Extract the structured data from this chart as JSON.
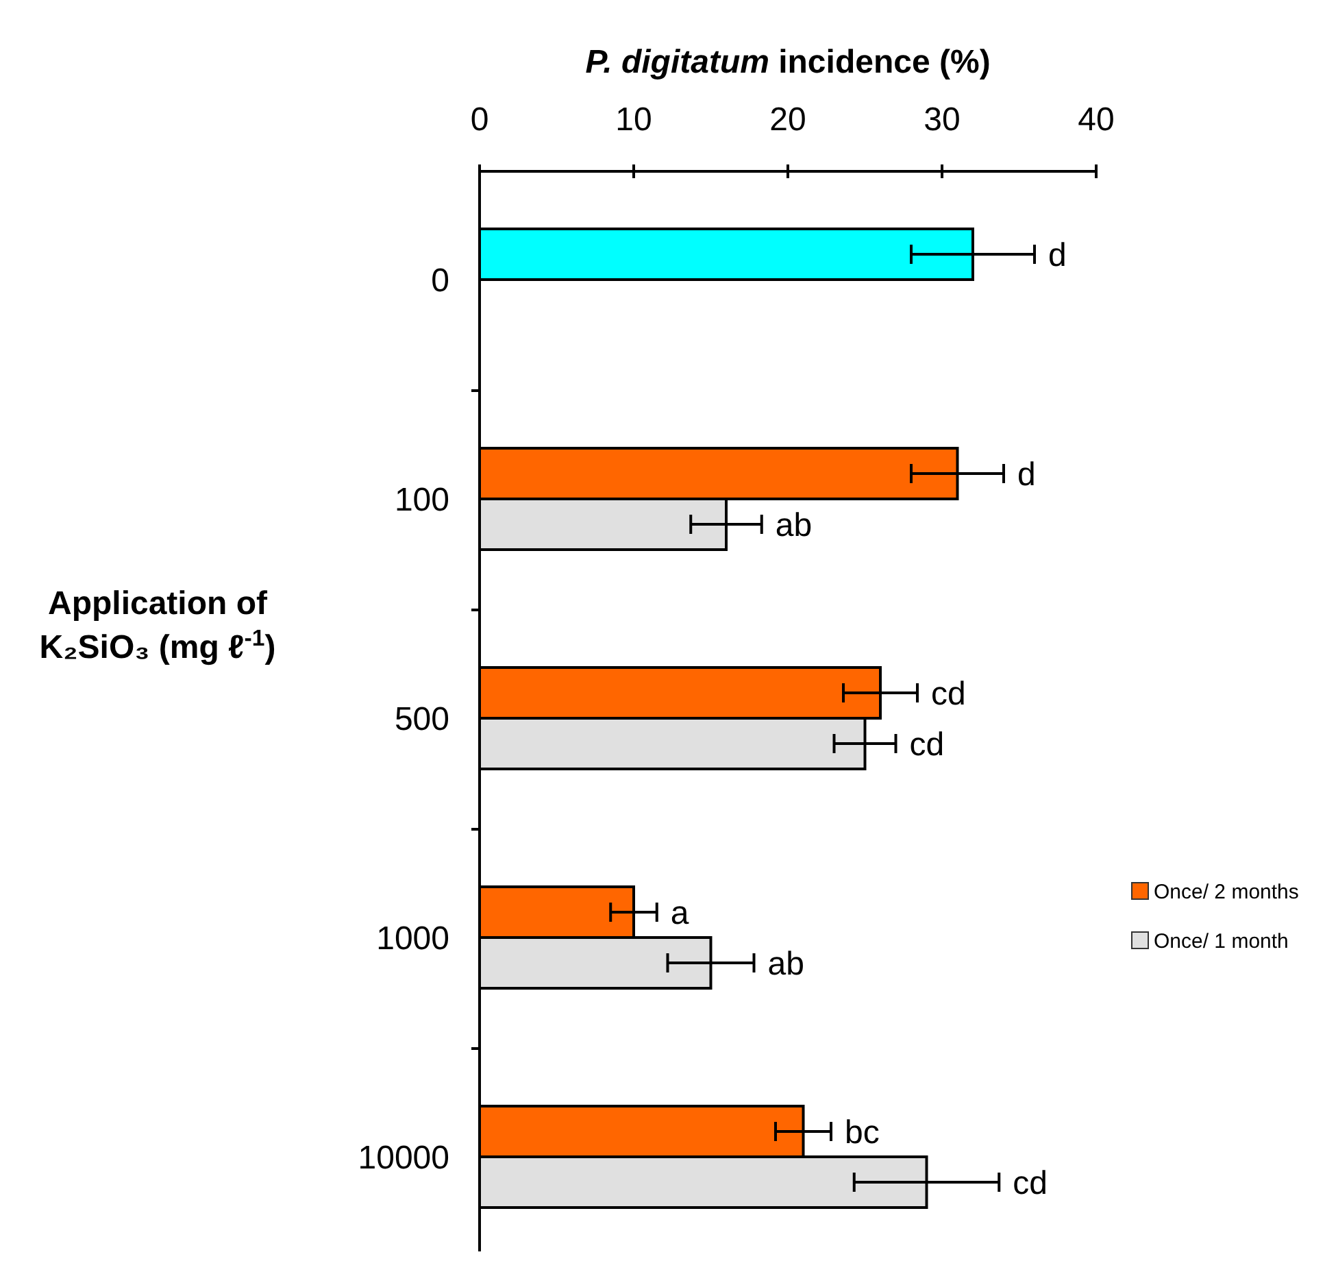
{
  "chart_data": {
    "type": "bar",
    "orientation": "horizontal",
    "xlabel": "P. digitatum incidence (%)",
    "ylabel": "Application of\nK₂SiO₃ (mg ℓ$^{-1}$)",
    "categories": [
      "0",
      "100",
      "500",
      "1000",
      "10000"
    ],
    "series": [
      {
        "name": "Once/ 2 months",
        "color": "#ff6600",
        "colors": [
          "#00ffff",
          "#ff6600",
          "#ff6600",
          "#ff6600",
          "#ff6600"
        ],
        "values": [
          32,
          31,
          26,
          10,
          21
        ],
        "errors": [
          4,
          3,
          2.4,
          1.5,
          1.8
        ],
        "value_labels": [
          "d",
          "d",
          "cd",
          "a",
          "bc"
        ]
      },
      {
        "name": "Once/ 1 month",
        "color": "#e0e0e0",
        "values": [
          null,
          16,
          25,
          15,
          29
        ],
        "errors": [
          null,
          2.3,
          2,
          2.8,
          4.7
        ],
        "value_labels": [
          null,
          "ab",
          "cd",
          "ab",
          "cd"
        ]
      }
    ],
    "xlim": [
      0,
      40
    ],
    "xticks": [
      0,
      10,
      20,
      30,
      40
    ],
    "grid": false,
    "legend": "right"
  }
}
